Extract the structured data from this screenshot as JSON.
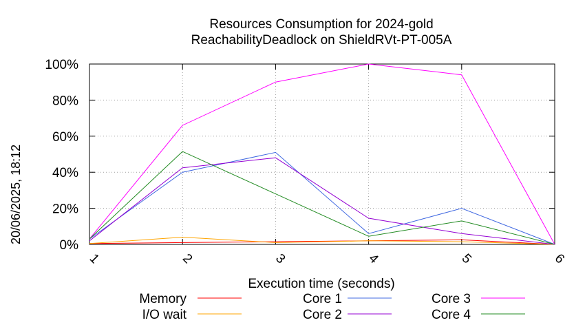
{
  "chart_data": {
    "type": "line",
    "title": "Resources Consumption for 2024-gold",
    "subtitle": "ReachabilityDeadlock on ShieldRVt-PT-005A",
    "xlabel": "Execution time (seconds)",
    "ylabel": "",
    "side_label": "20/06/2025, 18:12",
    "x": [
      1,
      2,
      3,
      4,
      5,
      6
    ],
    "x_ticks": [
      "1",
      "2",
      "3",
      "4",
      "5",
      "6"
    ],
    "y_ticks": [
      "0%",
      "20%",
      "40%",
      "60%",
      "80%",
      "100%"
    ],
    "xlim": [
      1,
      6
    ],
    "ylim": [
      0,
      100
    ],
    "grid": true,
    "legend_position": "bottom",
    "series": [
      {
        "name": "Memory",
        "color": "#ff0000",
        "values": [
          0.5,
          1,
          1.5,
          2,
          2.5,
          0
        ]
      },
      {
        "name": "I/O wait",
        "color": "#ffa500",
        "values": [
          0.5,
          4,
          1,
          2,
          1.5,
          0
        ]
      },
      {
        "name": "Core 1",
        "color": "#4169e1",
        "values": [
          3,
          40,
          51,
          6,
          20,
          0
        ]
      },
      {
        "name": "Core 2",
        "color": "#9400d3",
        "values": [
          2,
          42.5,
          48,
          14.5,
          6,
          0
        ]
      },
      {
        "name": "Core 3",
        "color": "#ff00ff",
        "values": [
          3,
          66,
          90,
          100,
          94,
          0
        ]
      },
      {
        "name": "Core 4",
        "color": "#228b22",
        "values": [
          3,
          51.5,
          28,
          4.5,
          13,
          0
        ]
      }
    ]
  }
}
